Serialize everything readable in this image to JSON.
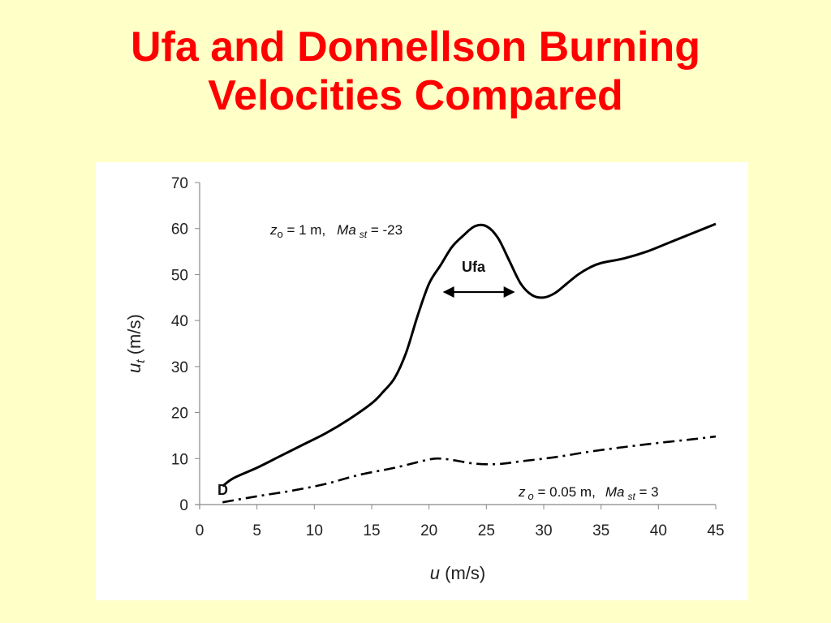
{
  "slide": {
    "title_line1": "Ufa and Donnellson Burning",
    "title_line2": "Velocities Compared"
  },
  "colors": {
    "title": "#ff0000",
    "background": "#ffffc8",
    "curve": "#000000"
  },
  "chart_data": {
    "type": "line",
    "title": "",
    "xlabel_var": "u",
    "xlabel_unit": " (m/s)",
    "ylabel_var": "u",
    "ylabel_sub": "t",
    "ylabel_unit": " (m/s)",
    "xlim": [
      0,
      45
    ],
    "ylim": [
      0,
      70
    ],
    "xticks": [
      0,
      5,
      10,
      15,
      20,
      25,
      30,
      35,
      40,
      45
    ],
    "yticks": [
      0,
      10,
      20,
      30,
      40,
      50,
      60,
      70
    ],
    "grid": false,
    "series": [
      {
        "name": "Ufa",
        "style": "solid",
        "x": [
          2,
          3,
          5,
          7,
          9,
          11,
          13,
          15,
          16,
          17,
          18,
          19,
          20,
          21,
          22,
          23,
          24,
          25,
          26,
          27,
          28,
          29,
          30,
          31,
          32,
          33,
          34,
          35,
          37,
          39,
          41,
          43,
          45
        ],
        "y": [
          4,
          5.8,
          8,
          10.5,
          13,
          15.5,
          18.5,
          22,
          24.5,
          27.5,
          33,
          41,
          48,
          52,
          56,
          58.5,
          60.5,
          60.5,
          58,
          53,
          48,
          45.5,
          45,
          46,
          48,
          50,
          51.5,
          52.5,
          53.5,
          55,
          57,
          59,
          61
        ]
      },
      {
        "name": "D",
        "style": "dash-dot",
        "x": [
          2,
          5,
          8,
          11,
          14,
          17,
          20,
          21,
          22,
          24,
          26,
          28,
          31,
          34,
          37,
          40,
          43,
          45
        ],
        "y": [
          0.5,
          1.8,
          3,
          4.5,
          6.5,
          8,
          9.8,
          10,
          9.7,
          8.9,
          8.8,
          9.4,
          10.3,
          11.5,
          12.5,
          13.4,
          14.2,
          14.8
        ]
      }
    ],
    "annotations": {
      "top": {
        "z": "z",
        "z_sub": "o",
        "eq1": " = 1 m,",
        "ma": "Ma",
        "ma_sub": "st",
        "eq2": " = -23"
      },
      "ufa_label": "Ufa",
      "d_label": "D",
      "bottom": {
        "z": "z",
        "z_sub": "o",
        "eq1": " = 0.05 m,",
        "ma": "Ma",
        "ma_sub": "st",
        "eq2": " = 3"
      }
    }
  }
}
